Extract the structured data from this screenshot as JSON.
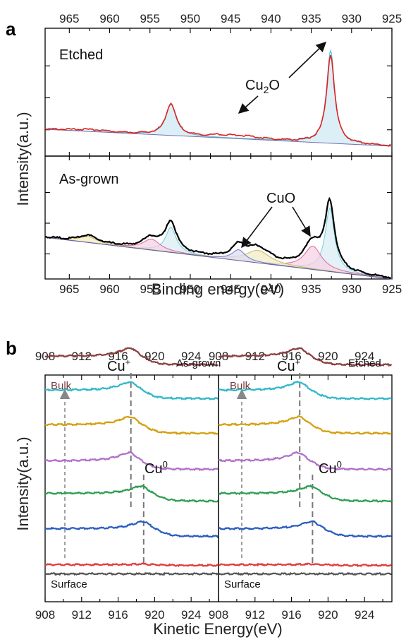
{
  "panel_labels": {
    "a": "a",
    "b": "b"
  },
  "chart_data": [
    {
      "type": "line",
      "id": "a-top",
      "title": "",
      "xlabel": "",
      "ylabel": "",
      "xlim": [
        968,
        925
      ],
      "xticks": [
        "965",
        "960",
        "955",
        "950",
        "945",
        "940",
        "935",
        "930",
        "925"
      ],
      "annotations": {
        "sample": "Etched",
        "species": "Cu",
        "subscript": "2",
        "species_suffix": "O"
      },
      "series": [
        {
          "name": "",
          "color": "#e02020",
          "peaks": [
            {
              "center": 932.6,
              "height": 1.0,
              "width": 0.6
            },
            {
              "center": 952.4,
              "height": 0.36,
              "width": 0.75
            }
          ]
        },
        {
          "name": "",
          "color": "#58c8d8",
          "peaks": [
            {
              "center": 932.6,
              "height": 1.05,
              "width": 0.6
            },
            {
              "center": 952.4,
              "height": 0.36,
              "width": 0.75
            }
          ]
        }
      ]
    },
    {
      "type": "line",
      "id": "a-bottom",
      "title": "",
      "xlabel": "Binding energy(eV)",
      "ylabel": "Intensity(a.u.)",
      "xlim": [
        968,
        925
      ],
      "xticks": [
        "965",
        "960",
        "955",
        "950",
        "945",
        "940",
        "935",
        "930",
        "925"
      ],
      "annotations": {
        "sample": "As-grown",
        "species": "CuO"
      },
      "series": [
        {
          "name": "",
          "color": "#000000",
          "peaks": [
            {
              "center": 932.7,
              "height": 0.78,
              "width": 0.7
            },
            {
              "center": 934.8,
              "height": 0.3,
              "width": 1.3
            },
            {
              "center": 941.6,
              "height": 0.17,
              "width": 1.8
            },
            {
              "center": 944.0,
              "height": 0.15,
              "width": 1.0
            },
            {
              "center": 952.4,
              "height": 0.35,
              "width": 0.8
            },
            {
              "center": 954.8,
              "height": 0.14,
              "width": 1.3
            },
            {
              "center": 962.7,
              "height": 0.08,
              "width": 1.3
            }
          ]
        },
        {
          "name": "",
          "color": "#7fd0dc",
          "fill": "#d8eef4",
          "peaks": [
            {
              "center": 932.7,
              "height": 0.76,
              "width": 0.7
            },
            {
              "center": 952.4,
              "height": 0.3,
              "width": 0.8
            }
          ]
        },
        {
          "name": "",
          "color": "#e070a8",
          "fill": "#f6d2e4",
          "peaks": [
            {
              "center": 934.8,
              "height": 0.28,
              "width": 1.3
            },
            {
              "center": 954.8,
              "height": 0.13,
              "width": 1.3
            }
          ]
        },
        {
          "name": "",
          "color": "#c8c060",
          "fill": "#f0ecc6",
          "peaks": [
            {
              "center": 941.6,
              "height": 0.15,
              "width": 1.8
            },
            {
              "center": 962.7,
              "height": 0.07,
              "width": 1.3
            }
          ]
        },
        {
          "name": "",
          "color": "#8080c8",
          "fill": "#dcdcf0",
          "peaks": [
            {
              "center": 944.0,
              "height": 0.13,
              "width": 1.0
            }
          ]
        }
      ]
    },
    {
      "type": "line",
      "id": "b-left",
      "title": "",
      "xlabel": "Kinetic Energy(eV)",
      "ylabel": "Intensity(a.u.)",
      "xlim": [
        908,
        927
      ],
      "xticks": [
        "908",
        "912",
        "916",
        "920",
        "924"
      ],
      "annotations": {
        "sample": "As-grown",
        "top_layer": "Bulk",
        "bottom_layer": "Surface",
        "cu1_base": "Cu",
        "cu1_sup": "+",
        "cu0_base": "Cu",
        "cu0_sup": "0"
      },
      "dashed_lines_x": [
        917.4,
        918.8
      ],
      "series": [
        {
          "name": "",
          "color": "#555555",
          "peak_center": 918.8,
          "peak_height": 0.0
        },
        {
          "name": "",
          "color": "#e03c3c",
          "peak_center": 918.8,
          "peak_height": 0.08
        },
        {
          "name": "",
          "color": "#2a5cbf",
          "peak_center": 918.8,
          "peak_height": 0.9
        },
        {
          "name": "",
          "color": "#2e9e50",
          "peak_center": 918.6,
          "peak_height": 0.9
        },
        {
          "name": "",
          "color": "#b070c8",
          "peak_center": 917.3,
          "peak_height": 1.0
        },
        {
          "name": "",
          "color": "#d4a010",
          "peak_center": 917.4,
          "peak_height": 1.0
        },
        {
          "name": "",
          "color": "#30b8c8",
          "peak_center": 917.4,
          "peak_height": 1.0
        },
        {
          "name": "",
          "color": "#8a4040",
          "peak_center": 917.4,
          "peak_height": 1.0
        }
      ]
    },
    {
      "type": "line",
      "id": "b-right",
      "title": "",
      "xlabel": "",
      "ylabel": "",
      "xlim": [
        908,
        927
      ],
      "xticks": [
        "908",
        "912",
        "916",
        "920",
        "924"
      ],
      "annotations": {
        "sample": "Etched",
        "top_layer": "Bulk",
        "bottom_layer": "Surface",
        "cu1_base": "Cu",
        "cu1_sup": "+",
        "cu0_base": "Cu",
        "cu0_sup": "0"
      },
      "dashed_lines_x": [
        916.9,
        918.3
      ],
      "series": [
        {
          "name": "",
          "color": "#555555",
          "peak_center": 918.3,
          "peak_height": 0.0
        },
        {
          "name": "",
          "color": "#e03c3c",
          "peak_center": 918.3,
          "peak_height": 0.08
        },
        {
          "name": "",
          "color": "#2a5cbf",
          "peak_center": 918.3,
          "peak_height": 0.9
        },
        {
          "name": "",
          "color": "#2e9e50",
          "peak_center": 918.2,
          "peak_height": 0.9
        },
        {
          "name": "",
          "color": "#b070c8",
          "peak_center": 916.8,
          "peak_height": 1.0
        },
        {
          "name": "",
          "color": "#d4a010",
          "peak_center": 916.9,
          "peak_height": 1.0
        },
        {
          "name": "",
          "color": "#30b8c8",
          "peak_center": 916.9,
          "peak_height": 1.0
        },
        {
          "name": "",
          "color": "#8a4040",
          "peak_center": 916.9,
          "peak_height": 1.0
        }
      ]
    }
  ]
}
